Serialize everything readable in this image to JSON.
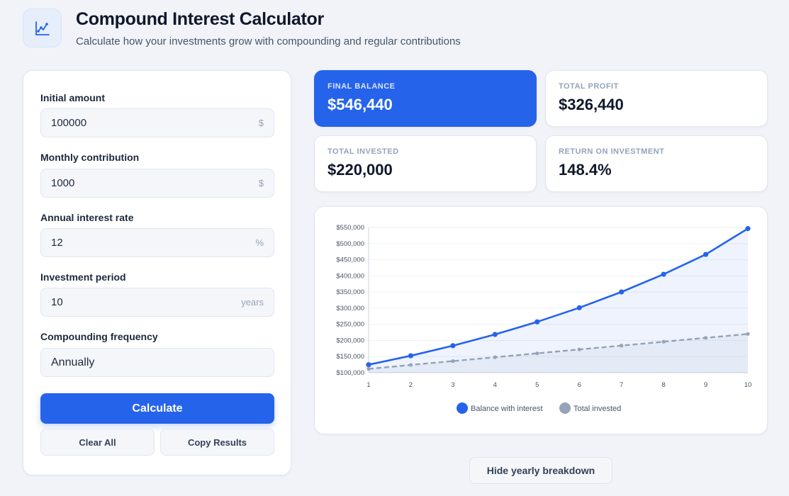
{
  "header": {
    "title": "Compound Interest Calculator",
    "subtitle": "Calculate how your investments grow with compounding and regular contributions",
    "logo_icon": "growth-chart-icon"
  },
  "form": {
    "initial_amount": {
      "label": "Initial amount",
      "value": "100000",
      "suffix": "$"
    },
    "monthly_contribution": {
      "label": "Monthly contribution",
      "value": "1000",
      "suffix": "$"
    },
    "annual_rate": {
      "label": "Annual interest rate",
      "value": "12",
      "suffix": "%"
    },
    "period": {
      "label": "Investment period",
      "value": "10",
      "suffix": "years"
    },
    "compounding": {
      "label": "Compounding frequency",
      "value": "Annually"
    },
    "calculate_label": "Calculate",
    "clear_label": "Clear All",
    "copy_label": "Copy Results"
  },
  "stats": {
    "final_balance": {
      "label": "Final balance",
      "value": "$546,440"
    },
    "total_profit": {
      "label": "Total profit",
      "value": "$326,440"
    },
    "total_invested": {
      "label": "Total invested",
      "value": "$220,000"
    },
    "roi": {
      "label": "Return on investment",
      "value": "148.4%"
    }
  },
  "toggle_breakdown_label": "Hide yearly breakdown",
  "colors": {
    "accent": "#2563eb",
    "invested": "#94a3b8"
  },
  "chart_data": {
    "type": "line",
    "x": [
      1,
      2,
      3,
      4,
      5,
      6,
      7,
      8,
      9,
      10
    ],
    "series": [
      {
        "name": "Balance with interest",
        "values": [
          124800,
          152576,
          183685,
          218528,
          257551,
          301258,
          350209,
          405034,
          466438,
          546440
        ]
      },
      {
        "name": "Total invested",
        "values": [
          112000,
          124000,
          136000,
          148000,
          160000,
          172000,
          184000,
          196000,
          208000,
          220000
        ]
      }
    ],
    "ylim": [
      100000,
      550000
    ],
    "yticks": [
      "$100,000",
      "$150,000",
      "$200,000",
      "$250,000",
      "$300,000",
      "$350,000",
      "$400,000",
      "$450,000",
      "$500,000",
      "$550,000"
    ],
    "legend_position": "bottom",
    "grid": true
  }
}
